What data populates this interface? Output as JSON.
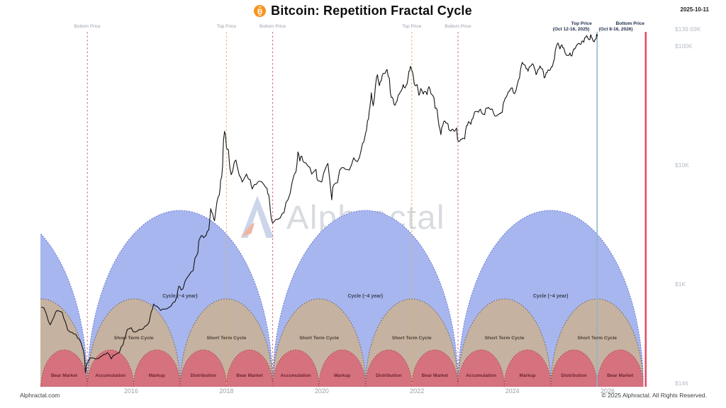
{
  "header": {
    "title": "Bitcoin: Repetition Fractal Cycle",
    "date": "2025-10-11"
  },
  "watermark": {
    "text": "Alphractal"
  },
  "footer": {
    "site": "Alphractal.com",
    "copyright": "© 2025 Alphractal. All Rights Reserved."
  },
  "colors": {
    "bitcoin_orange": "#f7931a",
    "price_line": "#141414",
    "cycle_long_fill": "#a7b6ee",
    "cycle_long_stroke": "#4d61c9",
    "cycle_short_fill": "#c6b2a0",
    "cycle_short_stroke": "#6b5d50",
    "phase_fill": "#d6727e",
    "phase_stroke": "#a23a47",
    "bottom": "#d4606a",
    "top": "#ddb05e",
    "projected-top": "#8fb3cc",
    "projected-bottom": "#e24b62"
  },
  "chart_data": {
    "type": "line",
    "title": "Bitcoin: Repetition Fractal Cycle",
    "y_scale": "log",
    "grid": "off",
    "y_axis_labels": [
      {
        "text": "$139.69K",
        "value": 139690
      },
      {
        "text": "$100K",
        "value": 100000
      },
      {
        "text": "$10K",
        "value": 10000
      },
      {
        "text": "$1K",
        "value": 1000
      },
      {
        "text": "$146",
        "value": 146
      }
    ],
    "x_axis_labels": [
      {
        "text": "2016",
        "year": 2016
      },
      {
        "text": "2018",
        "year": 2018
      },
      {
        "text": "2020",
        "year": 2020
      },
      {
        "text": "2022",
        "year": 2022
      },
      {
        "text": "2024",
        "year": 2024
      },
      {
        "text": "2026",
        "year": 2026
      }
    ],
    "markers": [
      {
        "label": "Bottom Price",
        "sublabel": "",
        "year": 2015.08,
        "role": "bottom",
        "style": "dashed"
      },
      {
        "label": "Top Price",
        "sublabel": "",
        "year": 2018.0,
        "role": "top",
        "style": "dashed"
      },
      {
        "label": "Bottom Price",
        "sublabel": "",
        "year": 2018.97,
        "role": "bottom",
        "style": "dashed"
      },
      {
        "label": "Top Price",
        "sublabel": "",
        "year": 2021.89,
        "role": "top",
        "style": "dashed"
      },
      {
        "label": "Bottom Price",
        "sublabel": "",
        "year": 2022.86,
        "role": "bottom",
        "style": "dashed"
      },
      {
        "label": "Top Price",
        "sublabel": "(Oct 12-16, 2025)",
        "year": 2025.78,
        "role": "projected-top",
        "style": "solid"
      },
      {
        "label": "Bottom Price",
        "sublabel": "(Oct 8-16, 2026)",
        "year": 2026.8,
        "role": "projected-bottom",
        "style": "solid"
      }
    ],
    "cycles": {
      "long_label": "Cycle (~4 year)",
      "short_label": "Short Term Cycle",
      "long": [
        {
          "start": 2011.19,
          "end": 2015.08,
          "labeled": false
        },
        {
          "start": 2015.08,
          "end": 2018.97,
          "labeled": true
        },
        {
          "start": 2018.97,
          "end": 2022.86,
          "labeled": true
        },
        {
          "start": 2022.86,
          "end": 2026.75,
          "labeled": true
        }
      ],
      "short": [
        {
          "start": 2013.13,
          "end": 2015.08,
          "labeled": false
        },
        {
          "start": 2015.08,
          "end": 2017.03,
          "labeled": true
        },
        {
          "start": 2017.03,
          "end": 2018.97,
          "labeled": true
        },
        {
          "start": 2018.97,
          "end": 2020.92,
          "labeled": true
        },
        {
          "start": 2020.92,
          "end": 2022.86,
          "labeled": true
        },
        {
          "start": 2022.86,
          "end": 2024.81,
          "labeled": true
        },
        {
          "start": 2024.81,
          "end": 2026.75,
          "labeled": true
        }
      ],
      "phases": [
        {
          "label": "Bear Market",
          "start": 2014.11,
          "end": 2015.08
        },
        {
          "label": "Accumulation",
          "start": 2015.08,
          "end": 2016.05
        },
        {
          "label": "Markup",
          "start": 2016.05,
          "end": 2017.03
        },
        {
          "label": "Distribution",
          "start": 2017.03,
          "end": 2018.0
        },
        {
          "label": "Bear Market",
          "start": 2018.0,
          "end": 2018.97
        },
        {
          "label": "Accumulation",
          "start": 2018.97,
          "end": 2019.94
        },
        {
          "label": "Markup",
          "start": 2019.94,
          "end": 2020.92
        },
        {
          "label": "Distribution",
          "start": 2020.92,
          "end": 2021.89
        },
        {
          "label": "Bear Market",
          "start": 2021.89,
          "end": 2022.86
        },
        {
          "label": "Accumulation",
          "start": 2022.86,
          "end": 2023.83
        },
        {
          "label": "Markup",
          "start": 2023.83,
          "end": 2024.81
        },
        {
          "label": "Distribution",
          "start": 2024.81,
          "end": 2025.78
        },
        {
          "label": "Bear Market",
          "start": 2025.78,
          "end": 2026.75
        }
      ]
    },
    "series": [
      {
        "name": "BTC price (USD)",
        "points": [
          [
            2014.12,
            640
          ],
          [
            2014.22,
            560
          ],
          [
            2014.3,
            455
          ],
          [
            2014.38,
            530
          ],
          [
            2014.45,
            600
          ],
          [
            2014.55,
            580
          ],
          [
            2014.62,
            480
          ],
          [
            2014.72,
            395
          ],
          [
            2014.8,
            380
          ],
          [
            2014.88,
            350
          ],
          [
            2014.95,
            320
          ],
          [
            2015.0,
            275
          ],
          [
            2015.04,
            180
          ],
          [
            2015.1,
            225
          ],
          [
            2015.18,
            240
          ],
          [
            2015.25,
            235
          ],
          [
            2015.33,
            240
          ],
          [
            2015.42,
            255
          ],
          [
            2015.5,
            265
          ],
          [
            2015.58,
            235
          ],
          [
            2015.67,
            255
          ],
          [
            2015.75,
            265
          ],
          [
            2015.83,
            310
          ],
          [
            2015.88,
            360
          ],
          [
            2015.92,
            415
          ],
          [
            2016.0,
            430
          ],
          [
            2016.08,
            395
          ],
          [
            2016.17,
            415
          ],
          [
            2016.25,
            420
          ],
          [
            2016.33,
            450
          ],
          [
            2016.42,
            580
          ],
          [
            2016.47,
            680
          ],
          [
            2016.53,
            655
          ],
          [
            2016.62,
            600
          ],
          [
            2016.71,
            615
          ],
          [
            2016.79,
            635
          ],
          [
            2016.88,
            700
          ],
          [
            2016.96,
            790
          ],
          [
            2017.0,
            960
          ],
          [
            2017.05,
            890
          ],
          [
            2017.13,
            1050
          ],
          [
            2017.21,
            1180
          ],
          [
            2017.3,
            1300
          ],
          [
            2017.38,
            1750
          ],
          [
            2017.42,
            2300
          ],
          [
            2017.47,
            2550
          ],
          [
            2017.52,
            2450
          ],
          [
            2017.57,
            2550
          ],
          [
            2017.63,
            2850
          ],
          [
            2017.67,
            4300
          ],
          [
            2017.71,
            3900
          ],
          [
            2017.75,
            3400
          ],
          [
            2017.8,
            4900
          ],
          [
            2017.85,
            5600
          ],
          [
            2017.88,
            7500
          ],
          [
            2017.92,
            9800
          ],
          [
            2017.94,
            16500
          ],
          [
            2017.96,
            19200
          ],
          [
            2018.0,
            14000
          ],
          [
            2018.04,
            13500
          ],
          [
            2018.1,
            8300
          ],
          [
            2018.16,
            10400
          ],
          [
            2018.2,
            11000
          ],
          [
            2018.27,
            8200
          ],
          [
            2018.33,
            7200
          ],
          [
            2018.42,
            8400
          ],
          [
            2018.5,
            7500
          ],
          [
            2018.54,
            6300
          ],
          [
            2018.63,
            6900
          ],
          [
            2018.71,
            7300
          ],
          [
            2018.79,
            6800
          ],
          [
            2018.85,
            6400
          ],
          [
            2018.89,
            5600
          ],
          [
            2018.92,
            4200
          ],
          [
            2018.97,
            3250
          ],
          [
            2019.04,
            3500
          ],
          [
            2019.13,
            3600
          ],
          [
            2019.21,
            4000
          ],
          [
            2019.29,
            5100
          ],
          [
            2019.38,
            7200
          ],
          [
            2019.46,
            8800
          ],
          [
            2019.5,
            12900
          ],
          [
            2019.54,
            10800
          ],
          [
            2019.58,
            11900
          ],
          [
            2019.63,
            10500
          ],
          [
            2019.71,
            9800
          ],
          [
            2019.79,
            8400
          ],
          [
            2019.88,
            9200
          ],
          [
            2019.92,
            7400
          ],
          [
            2020.0,
            7200
          ],
          [
            2020.08,
            9400
          ],
          [
            2020.13,
            10300
          ],
          [
            2020.21,
            5100
          ],
          [
            2020.25,
            6800
          ],
          [
            2020.33,
            7100
          ],
          [
            2020.42,
            9500
          ],
          [
            2020.5,
            9200
          ],
          [
            2020.58,
            9100
          ],
          [
            2020.67,
            11500
          ],
          [
            2020.75,
            10700
          ],
          [
            2020.83,
            13500
          ],
          [
            2020.88,
            15500
          ],
          [
            2020.92,
            18500
          ],
          [
            2020.96,
            23500
          ],
          [
            2021.0,
            29000
          ],
          [
            2021.02,
            33000
          ],
          [
            2021.04,
            40500
          ],
          [
            2021.08,
            31500
          ],
          [
            2021.13,
            47000
          ],
          [
            2021.17,
            57500
          ],
          [
            2021.21,
            46500
          ],
          [
            2021.25,
            51000
          ],
          [
            2021.29,
            58800
          ],
          [
            2021.33,
            59000
          ],
          [
            2021.37,
            63500
          ],
          [
            2021.42,
            53500
          ],
          [
            2021.46,
            37000
          ],
          [
            2021.5,
            35500
          ],
          [
            2021.54,
            31800
          ],
          [
            2021.58,
            34500
          ],
          [
            2021.63,
            39500
          ],
          [
            2021.67,
            42000
          ],
          [
            2021.71,
            47500
          ],
          [
            2021.75,
            44500
          ],
          [
            2021.79,
            48000
          ],
          [
            2021.83,
            61500
          ],
          [
            2021.86,
            67500
          ],
          [
            2021.88,
            64500
          ],
          [
            2021.92,
            57000
          ],
          [
            2021.96,
            46500
          ],
          [
            2022.0,
            47500
          ],
          [
            2022.04,
            38500
          ],
          [
            2022.08,
            44000
          ],
          [
            2022.13,
            39500
          ],
          [
            2022.17,
            41500
          ],
          [
            2022.21,
            39000
          ],
          [
            2022.25,
            45500
          ],
          [
            2022.29,
            40000
          ],
          [
            2022.33,
            38500
          ],
          [
            2022.38,
            30000
          ],
          [
            2022.42,
            29500
          ],
          [
            2022.46,
            21500
          ],
          [
            2022.5,
            18000
          ],
          [
            2022.54,
            21500
          ],
          [
            2022.58,
            23500
          ],
          [
            2022.63,
            22500
          ],
          [
            2022.67,
            19800
          ],
          [
            2022.71,
            19300
          ],
          [
            2022.75,
            20000
          ],
          [
            2022.79,
            19200
          ],
          [
            2022.83,
            20500
          ],
          [
            2022.87,
            15800
          ],
          [
            2022.92,
            16500
          ],
          [
            2022.96,
            16800
          ],
          [
            2023.0,
            16600
          ],
          [
            2023.04,
            21500
          ],
          [
            2023.08,
            23200
          ],
          [
            2023.13,
            22000
          ],
          [
            2023.17,
            24500
          ],
          [
            2023.21,
            28000
          ],
          [
            2023.25,
            28300
          ],
          [
            2023.29,
            27800
          ],
          [
            2023.33,
            29500
          ],
          [
            2023.38,
            26800
          ],
          [
            2023.42,
            26500
          ],
          [
            2023.46,
            30200
          ],
          [
            2023.5,
            30500
          ],
          [
            2023.54,
            29300
          ],
          [
            2023.58,
            29500
          ],
          [
            2023.63,
            26000
          ],
          [
            2023.67,
            25900
          ],
          [
            2023.71,
            26500
          ],
          [
            2023.75,
            27000
          ],
          [
            2023.79,
            27800
          ],
          [
            2023.83,
            34500
          ],
          [
            2023.88,
            37500
          ],
          [
            2023.92,
            41500
          ],
          [
            2023.96,
            43500
          ],
          [
            2024.0,
            44500
          ],
          [
            2024.04,
            39800
          ],
          [
            2024.08,
            43000
          ],
          [
            2024.13,
            52000
          ],
          [
            2024.17,
            62500
          ],
          [
            2024.21,
            73000
          ],
          [
            2024.25,
            69500
          ],
          [
            2024.29,
            64500
          ],
          [
            2024.33,
            61500
          ],
          [
            2024.38,
            67500
          ],
          [
            2024.42,
            71000
          ],
          [
            2024.46,
            66000
          ],
          [
            2024.5,
            57500
          ],
          [
            2024.54,
            63500
          ],
          [
            2024.58,
            68000
          ],
          [
            2024.63,
            64500
          ],
          [
            2024.67,
            54000
          ],
          [
            2024.71,
            59500
          ],
          [
            2024.75,
            63000
          ],
          [
            2024.79,
            62500
          ],
          [
            2024.83,
            67500
          ],
          [
            2024.85,
            69500
          ],
          [
            2024.88,
            76500
          ],
          [
            2024.9,
            90500
          ],
          [
            2024.92,
            98000
          ],
          [
            2024.96,
            106000
          ],
          [
            2025.0,
            94500
          ],
          [
            2025.04,
            102500
          ],
          [
            2025.08,
            96500
          ],
          [
            2025.13,
            84500
          ],
          [
            2025.17,
            83500
          ],
          [
            2025.21,
            87500
          ],
          [
            2025.25,
            82500
          ],
          [
            2025.29,
            94500
          ],
          [
            2025.33,
            97500
          ],
          [
            2025.38,
            104500
          ],
          [
            2025.42,
            103500
          ],
          [
            2025.46,
            110000
          ],
          [
            2025.5,
            107500
          ],
          [
            2025.54,
            118500
          ],
          [
            2025.56,
            122500
          ],
          [
            2025.58,
            117500
          ],
          [
            2025.63,
            113500
          ],
          [
            2025.65,
            124200
          ],
          [
            2025.67,
            117500
          ],
          [
            2025.71,
            108500
          ],
          [
            2025.73,
            112500
          ],
          [
            2025.75,
            114500
          ],
          [
            2025.77,
            125500
          ],
          [
            2025.785,
            121500
          ]
        ]
      }
    ]
  }
}
